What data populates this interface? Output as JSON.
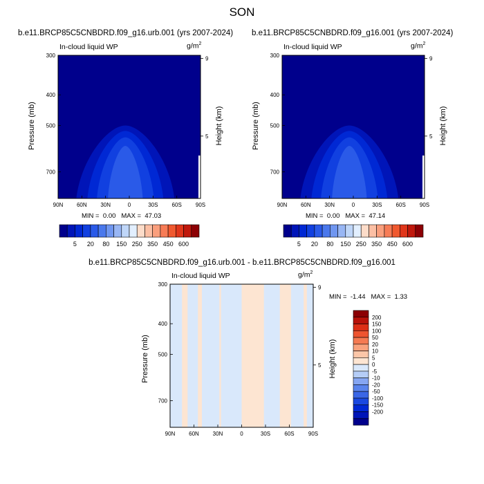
{
  "figure": {
    "season": "SON"
  },
  "colors": {
    "cmap_top": [
      "#00008c",
      "#0015b8",
      "#0028d4",
      "#1140e0",
      "#2a5ae8",
      "#4a78ec",
      "#6f96f0",
      "#98b6f4",
      "#bfd6f8",
      "#e2efff",
      "#fddcc9",
      "#fcbfa4",
      "#fa9f7d",
      "#f77c56",
      "#f0592f",
      "#e0361a",
      "#c0180c",
      "#8c0004"
    ],
    "cmap_diff": [
      "#00008c",
      "#0015b8",
      "#0028d4",
      "#1a48e0",
      "#3a66e6",
      "#5a84ec",
      "#86a6f2",
      "#b5cdf7",
      "#d9e8fb",
      "#fde5d2",
      "#fbc6a8",
      "#f9a27d",
      "#f57a52",
      "#ee5430",
      "#dc2f16",
      "#b8120a",
      "#8c0004"
    ]
  },
  "chart_data": [
    {
      "type": "heatmap",
      "title": "b.e11.BRCP85C5CNBDRD.f09_g16.urb.001 (yrs 2007-2024)",
      "variable": "In-cloud liquid WP",
      "units_base": "g/m",
      "units_exp": "2",
      "xlabel": "",
      "ylabel": "Pressure (mb)",
      "ylabel_right": "Height (km)",
      "x_ticks": [
        "90N",
        "60N",
        "30N",
        "0",
        "30S",
        "60S",
        "90S"
      ],
      "y_ticks": [
        "300",
        "400",
        "500",
        "700"
      ],
      "y_ticks_right": [
        "9",
        "5"
      ],
      "min_label": "MIN =",
      "min": "0.00",
      "max_label": "MAX =",
      "max": "47.03",
      "colorbar_labels": [
        "5",
        "20",
        "80",
        "150",
        "250",
        "350",
        "450",
        "600"
      ],
      "xlim": [
        90,
        -90
      ],
      "ylim_mb": [
        300,
        850
      ],
      "peak_value": 47.03,
      "peak_lat": 5,
      "top_level_mb": 500
    },
    {
      "type": "heatmap",
      "title": "b.e11.BRCP85C5CNBDRD.f09_g16.001 (yrs 2007-2024)",
      "variable": "In-cloud liquid WP",
      "units_base": "g/m",
      "units_exp": "2",
      "xlabel": "",
      "ylabel": "Pressure (mb)",
      "ylabel_right": "Height (km)",
      "x_ticks": [
        "90N",
        "60N",
        "30N",
        "0",
        "30S",
        "60S",
        "90S"
      ],
      "y_ticks": [
        "300",
        "400",
        "500",
        "700"
      ],
      "y_ticks_right": [
        "9",
        "5"
      ],
      "min_label": "MIN =",
      "min": "0.00",
      "max_label": "MAX =",
      "max": "47.14",
      "colorbar_labels": [
        "5",
        "20",
        "80",
        "150",
        "250",
        "350",
        "450",
        "600"
      ],
      "xlim": [
        90,
        -90
      ],
      "ylim_mb": [
        300,
        850
      ],
      "peak_value": 47.14,
      "peak_lat": 5,
      "top_level_mb": 500
    },
    {
      "type": "heatmap",
      "title": "b.e11.BRCP85C5CNBDRD.f09_g16.urb.001 - b.e11.BRCP85C5CNBDRD.f09_g16.001",
      "variable": "In-cloud liquid WP",
      "units_base": "g/m",
      "units_exp": "2",
      "xlabel": "",
      "ylabel": "Pressure (mb)",
      "ylabel_right": "Height (km)",
      "x_ticks": [
        "90N",
        "60N",
        "30N",
        "0",
        "30S",
        "60S",
        "90S"
      ],
      "y_ticks": [
        "300",
        "400",
        "500",
        "700"
      ],
      "y_ticks_right": [
        "9",
        "5"
      ],
      "min_label": "MIN =",
      "min": "-1.44",
      "max_label": "MAX =",
      "max": "1.33",
      "colorbar_labels": [
        "200",
        "150",
        "100",
        "50",
        "20",
        "10",
        "5",
        "0",
        "-5",
        "-10",
        "-20",
        "-50",
        "-100",
        "-150",
        "-200"
      ],
      "xlim": [
        90,
        -90
      ],
      "ylim_mb": [
        300,
        850
      ],
      "positive_lat_bands": [
        [
          75,
          68
        ],
        [
          55,
          50
        ],
        [
          28,
          26
        ],
        [
          0,
          -28
        ],
        [
          -48,
          -62
        ],
        [
          -78,
          -82
        ]
      ]
    }
  ]
}
